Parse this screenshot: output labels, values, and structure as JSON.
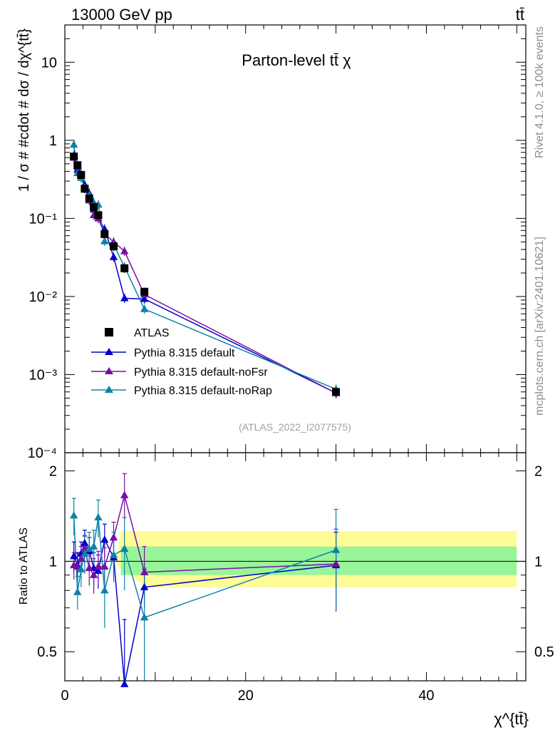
{
  "header": {
    "left": "13000 GeV pp",
    "right": "tt̄"
  },
  "side": {
    "rivet": "Rivet 4.1.0, ≥ 100k events",
    "mcplots": "mcplots.cern.ch [arXiv:2401.10621]"
  },
  "colors": {
    "ATLAS": "#000000",
    "default": "#0000cc",
    "noFsr": "#7a0da3",
    "noRap": "#0b83a8",
    "band_inner": "#99f599",
    "band_outer": "#fdfc96"
  },
  "chart_data": {
    "type": "scatter",
    "title": "Parton-level tt̄ χ",
    "ylabel": "1 / σ # #cdot # dσ / dχ^{tt̄}",
    "xlabel": "χ^{tt̄}",
    "ratio_ylabel": "Ratio to ATLAS",
    "watermark": "(ATLAS_2022_I2077575)",
    "xlim": [
      0,
      51
    ],
    "ylim": [
      0.0001,
      30
    ],
    "ratio_ylim": [
      0.4,
      2.3
    ],
    "x_ticks": [
      "0",
      "20",
      "40"
    ],
    "y_ticks": [
      "10",
      "1",
      "10⁻¹",
      "10⁻²",
      "10⁻³",
      "10⁻⁴"
    ],
    "ratio_ticks": [
      "2",
      "1",
      "0.5"
    ],
    "x": [
      1.0,
      1.4,
      1.8,
      2.2,
      2.7,
      3.2,
      3.7,
      4.4,
      5.4,
      6.6,
      8.8,
      30.0
    ],
    "atlas": {
      "name": "ATLAS",
      "values": [
        0.62,
        0.48,
        0.36,
        0.24,
        0.18,
        0.14,
        0.11,
        0.063,
        0.044,
        0.023,
        0.0115,
        0.0006
      ],
      "errors": [
        0.07,
        0.05,
        0.04,
        0.03,
        0.02,
        0.016,
        0.013,
        0.008,
        0.006,
        0.003,
        0.0015,
        0.0001
      ],
      "band_inner": [
        0.9,
        1.12
      ],
      "band_outer": [
        0.82,
        1.26
      ]
    },
    "series": [
      {
        "name": "Pythia 8.315 default",
        "key": "default",
        "values": [
          0.64,
          0.42,
          0.37,
          0.27,
          0.21,
          0.13,
          0.1,
          0.073,
          0.032,
          0.0095,
          0.0093,
          0.00058
        ],
        "ratio": [
          1.04,
          0.97,
          1.06,
          1.15,
          1.08,
          0.95,
          0.93,
          1.18,
          1.03,
          0.39,
          0.82,
          0.97
        ],
        "ratio_err": [
          0.12,
          0.1,
          0.1,
          0.12,
          0.12,
          0.12,
          0.12,
          0.15,
          0.15,
          0.25,
          0.12,
          0.28
        ]
      },
      {
        "name": "Pythia 8.315 default-noFsr",
        "key": "noFsr",
        "values": [
          0.6,
          0.46,
          0.35,
          0.25,
          0.17,
          0.11,
          0.1,
          0.063,
          0.05,
          0.038,
          0.0106,
          0.00058
        ],
        "ratio": [
          0.97,
          0.96,
          1.02,
          1.1,
          0.95,
          0.9,
          0.96,
          0.96,
          1.2,
          1.66,
          0.92,
          0.98
        ],
        "ratio_err": [
          0.1,
          0.1,
          0.1,
          0.12,
          0.12,
          0.12,
          0.12,
          0.15,
          0.15,
          0.3,
          0.2,
          0.3
        ]
      },
      {
        "name": "Pythia 8.315 default-noRap",
        "key": "noRap",
        "values": [
          0.88,
          0.38,
          0.33,
          0.25,
          0.2,
          0.16,
          0.15,
          0.051,
          0.046,
          0.024,
          0.0069,
          0.00065
        ],
        "ratio": [
          1.42,
          0.79,
          0.94,
          1.06,
          1.1,
          1.12,
          1.4,
          0.8,
          1.05,
          1.1,
          0.65,
          1.09
        ],
        "ratio_err": [
          0.2,
          0.1,
          0.12,
          0.15,
          0.15,
          0.15,
          0.2,
          0.2,
          0.2,
          0.3,
          0.3,
          0.4
        ]
      }
    ]
  }
}
